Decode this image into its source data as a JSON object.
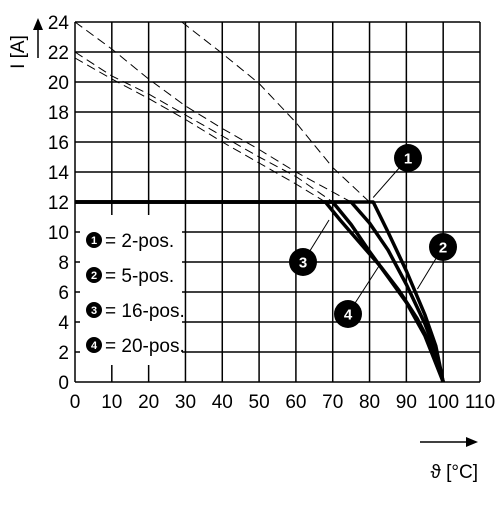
{
  "chart_data": {
    "type": "line",
    "title": "",
    "xlabel": "ϑ [°C]",
    "ylabel": "I [A]",
    "xlim": [
      0,
      110
    ],
    "ylim": [
      0,
      24
    ],
    "grid": true,
    "x_ticks": [
      "0",
      "10",
      "20",
      "30",
      "40",
      "50",
      "60",
      "70",
      "80",
      "90",
      "100",
      "110"
    ],
    "y_ticks": [
      "0",
      "2",
      "4",
      "6",
      "8",
      "10",
      "12",
      "14",
      "16",
      "18",
      "20",
      "22",
      "24"
    ],
    "legend": {
      "placement": "left",
      "entries": [
        {
          "num": "1",
          "label": "= 2-pos."
        },
        {
          "num": "2",
          "label": "= 5-pos."
        },
        {
          "num": "3",
          "label": "= 16-pos."
        },
        {
          "num": "4",
          "label": "= 20-pos."
        }
      ]
    },
    "series": [
      {
        "id": "1",
        "style": "solid",
        "values": [
          [
            0,
            12
          ],
          [
            81,
            12
          ],
          [
            85,
            10
          ],
          [
            90,
            7.4
          ],
          [
            95,
            4.5
          ],
          [
            98,
            2.4
          ],
          [
            100,
            0
          ]
        ]
      },
      {
        "id": "2",
        "style": "solid",
        "values": [
          [
            0,
            12
          ],
          [
            75,
            12
          ],
          [
            80,
            10.6
          ],
          [
            85,
            8.8
          ],
          [
            90,
            6.5
          ],
          [
            95,
            3.9
          ],
          [
            98,
            2
          ],
          [
            100,
            0
          ]
        ]
      },
      {
        "id": "3",
        "style": "solid",
        "values": [
          [
            0,
            12
          ],
          [
            70,
            12
          ],
          [
            75,
            10.5
          ],
          [
            80,
            8.7
          ],
          [
            85,
            7
          ],
          [
            90,
            5.3
          ],
          [
            95,
            3.1
          ],
          [
            100,
            0
          ]
        ]
      },
      {
        "id": "4",
        "style": "solid",
        "values": [
          [
            0,
            12
          ],
          [
            68,
            12
          ],
          [
            72,
            10.8
          ],
          [
            78,
            9.1
          ],
          [
            83,
            7.7
          ],
          [
            88,
            6.1
          ],
          [
            93,
            4.2
          ],
          [
            97,
            2.3
          ],
          [
            100,
            0
          ]
        ]
      },
      {
        "id": "derating-limit-1",
        "style": "dashed",
        "values": [
          [
            29,
            24
          ],
          [
            40,
            21.9
          ],
          [
            50,
            19.9
          ],
          [
            60,
            17.3
          ],
          [
            70,
            14.3
          ],
          [
            80,
            12
          ]
        ]
      },
      {
        "id": "derating-limit-2",
        "style": "dashed",
        "values": [
          [
            0,
            24
          ],
          [
            10,
            22.2
          ],
          [
            20,
            20.2
          ],
          [
            30,
            18.4
          ],
          [
            40,
            16.9
          ],
          [
            50,
            15.5
          ],
          [
            60,
            14
          ],
          [
            75,
            12
          ]
        ]
      },
      {
        "id": "derating-limit-3",
        "style": "dashed",
        "values": [
          [
            0,
            22
          ],
          [
            10,
            20.4
          ],
          [
            20,
            19.2
          ],
          [
            30,
            17.8
          ],
          [
            40,
            16.4
          ],
          [
            50,
            15
          ],
          [
            60,
            13.7
          ],
          [
            70,
            12
          ]
        ]
      },
      {
        "id": "derating-limit-4",
        "style": "dashed",
        "values": [
          [
            0,
            21.6
          ],
          [
            10,
            20.2
          ],
          [
            20,
            18.9
          ],
          [
            30,
            17.5
          ],
          [
            40,
            16
          ],
          [
            50,
            14.6
          ],
          [
            60,
            13.2
          ],
          [
            68,
            12
          ]
        ]
      }
    ],
    "callouts": [
      {
        "num": "1",
        "at": [
          81,
          12.3
        ]
      },
      {
        "num": "2",
        "at": [
          93,
          6.2
        ]
      },
      {
        "num": "3",
        "at": [
          69,
          10.8
        ]
      },
      {
        "num": "4",
        "at": [
          83,
          7.9
        ]
      }
    ]
  }
}
